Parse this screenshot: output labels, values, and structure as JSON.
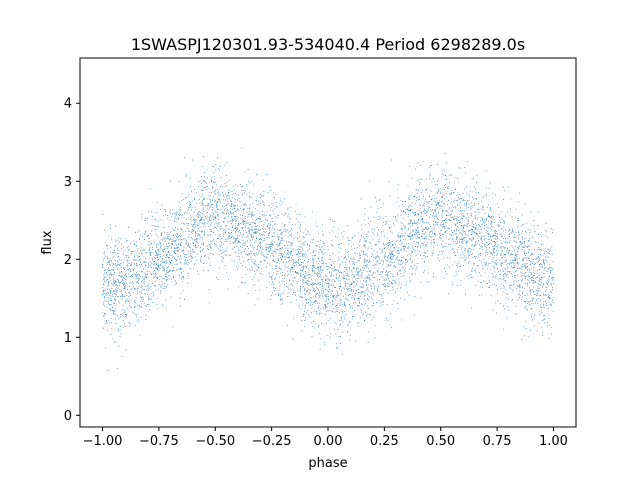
{
  "chart_data": {
    "type": "scatter",
    "title": "1SWASPJ120301.93-534040.4 Period 6298289.0s",
    "xlabel": "phase",
    "ylabel": "flux",
    "xlim": [
      -1.1,
      1.1
    ],
    "ylim": [
      -0.15,
      4.58
    ],
    "xticks": [
      -1.0,
      -0.75,
      -0.5,
      -0.25,
      0.0,
      0.25,
      0.5,
      0.75,
      1.0
    ],
    "xtick_labels": [
      "−1.00",
      "−0.75",
      "−0.50",
      "−0.25",
      "0.00",
      "0.25",
      "0.50",
      "0.75",
      "1.00"
    ],
    "yticks": [
      0,
      1,
      2,
      3,
      4
    ],
    "ytick_labels": [
      "0",
      "1",
      "2",
      "3",
      "4"
    ],
    "grid": false,
    "point_color": "#1f77b4",
    "series": [
      {
        "x_range": [
          -1.0,
          1.0
        ],
        "mean_curve": {
          "phase": [
            0.0,
            0.1,
            0.2,
            0.3,
            0.4,
            0.5,
            0.6,
            0.7,
            0.8,
            0.9,
            1.0
          ],
          "flux": [
            1.7,
            1.65,
            1.9,
            2.1,
            2.4,
            2.55,
            2.4,
            2.25,
            2.05,
            1.8,
            1.7
          ]
        },
        "scatter_sd": 0.32,
        "n_points": 6000
      }
    ]
  }
}
